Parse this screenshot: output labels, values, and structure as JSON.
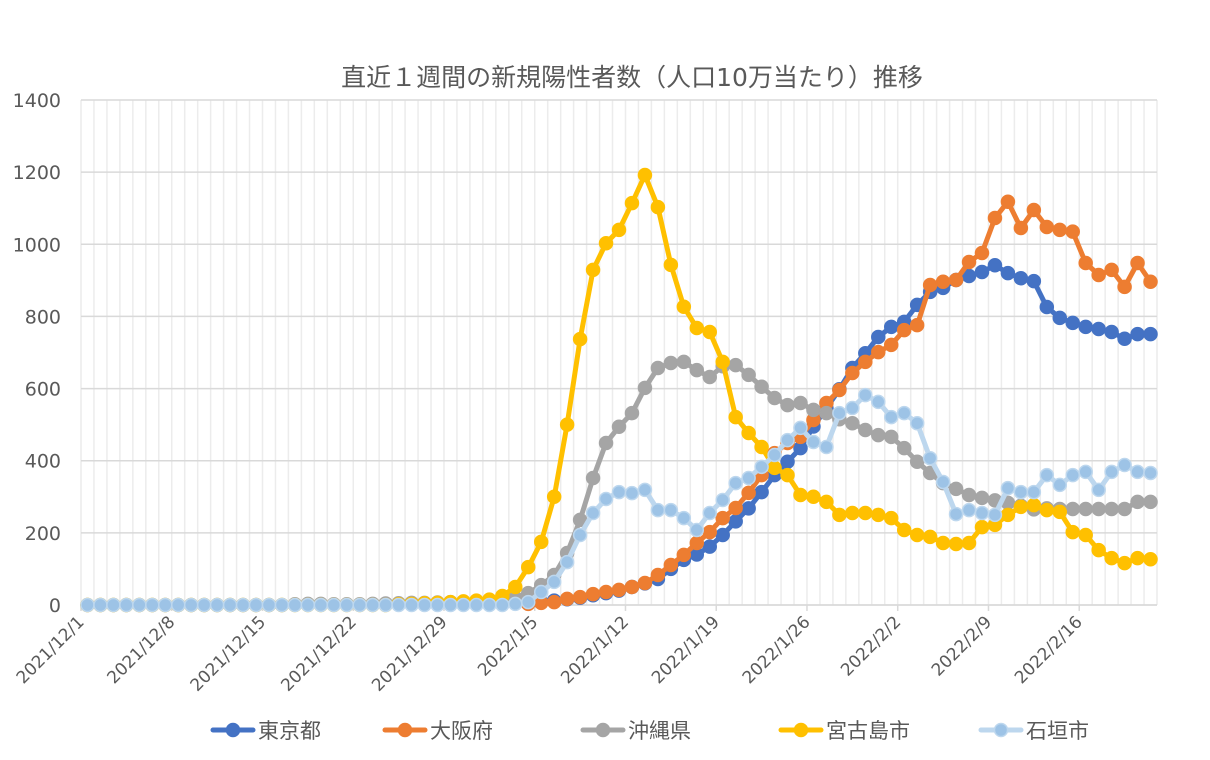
{
  "chart_data": {
    "type": "line",
    "title": "直近１週間の新規陽性者数（人口10万当たり）推移",
    "xlabel": "",
    "ylabel": "",
    "ylim": [
      0,
      1400
    ],
    "yticks": [
      0,
      200,
      400,
      600,
      800,
      1000,
      1200,
      1400
    ],
    "start_date": "2021/12/1",
    "num_days": 83,
    "xtick_every_days": 7,
    "xtick_labels": [
      "2021/12/1",
      "2021/12/8",
      "2021/12/15",
      "2021/12/22",
      "2021/12/29",
      "2022/1/5",
      "2022/1/12",
      "2022/1/19",
      "2022/1/26",
      "2022/2/2",
      "2022/2/9",
      "2022/2/16"
    ],
    "grid": true,
    "legend_position": "bottom",
    "series": [
      {
        "name": "東京都",
        "color": "#4472C4",
        "marker_fill": "#4472C4",
        "marker_stroke": "#4472C4",
        "values": [
          null,
          null,
          null,
          null,
          null,
          null,
          null,
          null,
          null,
          null,
          null,
          null,
          null,
          null,
          null,
          null,
          null,
          null,
          null,
          null,
          null,
          null,
          null,
          null,
          null,
          null,
          null,
          null,
          null,
          null,
          null,
          null,
          null,
          null,
          4,
          8,
          12,
          16,
          20,
          27,
          33,
          40,
          50,
          60,
          72,
          100,
          125,
          140,
          162,
          194,
          232,
          268,
          313,
          360,
          397,
          435,
          495,
          545,
          598,
          657,
          698,
          743,
          771,
          785,
          832,
          868,
          879,
          901,
          912,
          923,
          942,
          920,
          906,
          898,
          826,
          796,
          782,
          771,
          765,
          757,
          738,
          751,
          751
        ]
      },
      {
        "name": "大阪府",
        "color": "#ED7D31",
        "marker_fill": "#ED7D31",
        "marker_stroke": "#ED7D31",
        "values": [
          null,
          null,
          null,
          null,
          null,
          null,
          null,
          null,
          null,
          null,
          null,
          null,
          null,
          null,
          null,
          null,
          null,
          null,
          null,
          null,
          null,
          null,
          null,
          null,
          null,
          null,
          null,
          null,
          null,
          null,
          null,
          null,
          null,
          null,
          3,
          6,
          8,
          17,
          22,
          30,
          36,
          42,
          50,
          61,
          83,
          111,
          139,
          172,
          202,
          241,
          269,
          311,
          360,
          421,
          449,
          466,
          513,
          560,
          596,
          643,
          674,
          701,
          721,
          762,
          776,
          887,
          896,
          901,
          951,
          976,
          1073,
          1118,
          1045,
          1095,
          1048,
          1040,
          1035,
          948,
          915,
          929,
          882,
          948,
          896
        ]
      },
      {
        "name": "沖縄県",
        "color": "#A5A5A5",
        "marker_fill": "#A5A5A5",
        "marker_stroke": "#A5A5A5",
        "values": [
          0,
          0,
          0,
          0,
          0,
          0,
          0,
          0,
          0,
          0,
          0,
          0,
          0,
          0,
          0,
          0,
          2,
          3,
          3,
          2,
          2,
          2,
          3,
          4,
          5,
          6,
          6,
          7,
          8,
          9,
          10,
          12,
          15,
          20,
          33,
          55,
          83,
          144,
          236,
          352,
          449,
          494,
          532,
          602,
          657,
          671,
          674,
          651,
          632,
          662,
          665,
          638,
          605,
          574,
          554,
          560,
          541,
          532,
          515,
          504,
          485,
          471,
          466,
          435,
          397,
          366,
          338,
          322,
          305,
          297,
          290,
          283,
          275,
          265,
          268,
          266,
          266,
          266,
          266,
          266,
          266,
          286,
          286
        ]
      },
      {
        "name": "宮古島市",
        "color": "#FFC000",
        "marker_fill": "#FFC000",
        "marker_stroke": "#FFC000",
        "values": [
          0,
          0,
          0,
          0,
          0,
          0,
          0,
          0,
          0,
          0,
          0,
          0,
          0,
          0,
          0,
          0,
          0,
          0,
          0,
          0,
          0,
          0,
          0,
          0,
          2,
          3,
          5,
          6,
          8,
          10,
          12,
          15,
          25,
          50,
          105,
          175,
          300,
          500,
          737,
          929,
          1003,
          1040,
          1114,
          1192,
          1103,
          943,
          827,
          768,
          757,
          674,
          521,
          477,
          438,
          380,
          360,
          305,
          300,
          286,
          250,
          255,
          255,
          250,
          241,
          208,
          194,
          189,
          172,
          169,
          172,
          216,
          222,
          250,
          272,
          277,
          263,
          258,
          202,
          194,
          152,
          130,
          116,
          130,
          127
        ]
      },
      {
        "name": "石垣市",
        "color": "#BDD7EE",
        "marker_fill": "#9DC3E6",
        "marker_stroke": "#BDD7EE",
        "values": [
          0,
          0,
          0,
          0,
          0,
          0,
          0,
          0,
          0,
          0,
          0,
          0,
          0,
          0,
          0,
          0,
          0,
          0,
          0,
          0,
          0,
          0,
          0,
          0,
          0,
          0,
          0,
          0,
          0,
          0,
          0,
          0,
          0,
          3,
          8,
          36,
          64,
          119,
          194,
          255,
          294,
          313,
          310,
          319,
          263,
          263,
          241,
          208,
          255,
          291,
          338,
          352,
          383,
          416,
          457,
          491,
          452,
          438,
          532,
          546,
          582,
          563,
          521,
          532,
          504,
          407,
          341,
          252,
          263,
          255,
          250,
          324,
          313,
          313,
          360,
          333,
          360,
          369,
          319,
          369,
          388,
          369,
          366
        ]
      }
    ]
  }
}
